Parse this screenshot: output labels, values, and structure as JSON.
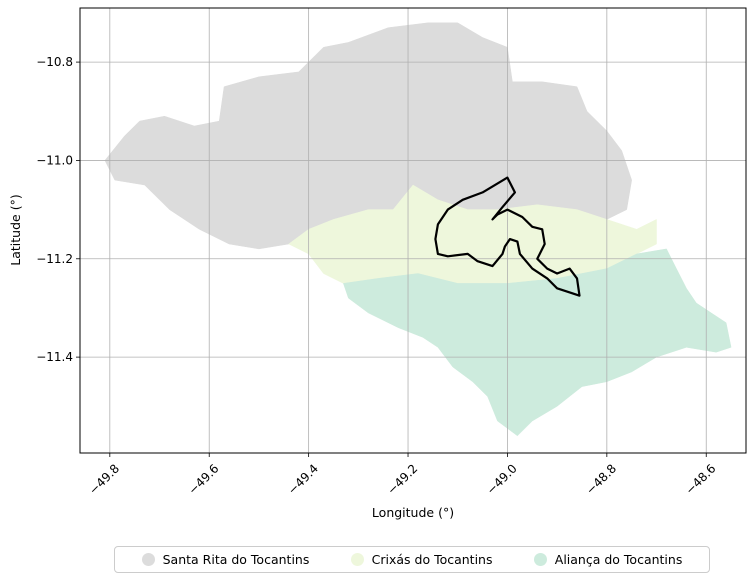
{
  "chart_data": {
    "type": "map",
    "xlabel": "Longitude (°)",
    "ylabel": "Latitude (°)",
    "xlim": [
      -49.86,
      -48.52
    ],
    "ylim": [
      -11.595,
      -10.69
    ],
    "xticks": [
      -49.8,
      -49.6,
      -49.4,
      -49.2,
      -49.0,
      -48.8,
      -48.6
    ],
    "yticks": [
      -10.8,
      -11.0,
      -11.2,
      -11.4
    ],
    "xtick_labels": [
      "−49.8",
      "−49.6",
      "−49.4",
      "−49.2",
      "−49.0",
      "−48.8",
      "−48.6"
    ],
    "ytick_labels": [
      "−10.8",
      "−11.0",
      "−11.2",
      "−11.4"
    ],
    "grid": true,
    "legend_position": "bottom-center",
    "regions": [
      {
        "name": "Santa Rita do Tocantins",
        "color": "#dcdcdc",
        "outline": [
          [
            -49.81,
            -11.0
          ],
          [
            -49.77,
            -10.95
          ],
          [
            -49.74,
            -10.92
          ],
          [
            -49.69,
            -10.91
          ],
          [
            -49.63,
            -10.93
          ],
          [
            -49.58,
            -10.92
          ],
          [
            -49.57,
            -10.85
          ],
          [
            -49.5,
            -10.83
          ],
          [
            -49.42,
            -10.82
          ],
          [
            -49.37,
            -10.77
          ],
          [
            -49.32,
            -10.76
          ],
          [
            -49.24,
            -10.73
          ],
          [
            -49.16,
            -10.72
          ],
          [
            -49.1,
            -10.72
          ],
          [
            -49.05,
            -10.75
          ],
          [
            -49.0,
            -10.77
          ],
          [
            -48.99,
            -10.84
          ],
          [
            -48.93,
            -10.84
          ],
          [
            -48.86,
            -10.85
          ],
          [
            -48.84,
            -10.9
          ],
          [
            -48.8,
            -10.94
          ],
          [
            -48.77,
            -10.98
          ],
          [
            -48.75,
            -11.04
          ],
          [
            -48.76,
            -11.1
          ],
          [
            -48.8,
            -11.12
          ],
          [
            -48.86,
            -11.1
          ],
          [
            -48.94,
            -11.09
          ],
          [
            -49.02,
            -11.1
          ],
          [
            -49.08,
            -11.1
          ],
          [
            -49.14,
            -11.08
          ],
          [
            -49.19,
            -11.05
          ],
          [
            -49.23,
            -11.1
          ],
          [
            -49.28,
            -11.1
          ],
          [
            -49.35,
            -11.12
          ],
          [
            -49.4,
            -11.14
          ],
          [
            -49.44,
            -11.17
          ],
          [
            -49.5,
            -11.18
          ],
          [
            -49.56,
            -11.17
          ],
          [
            -49.62,
            -11.14
          ],
          [
            -49.68,
            -11.1
          ],
          [
            -49.73,
            -11.05
          ],
          [
            -49.79,
            -11.04
          ]
        ]
      },
      {
        "name": "Crixás do Tocantins",
        "color": "#eef7dc",
        "outline": [
          [
            -49.44,
            -11.17
          ],
          [
            -49.4,
            -11.14
          ],
          [
            -49.35,
            -11.12
          ],
          [
            -49.28,
            -11.1
          ],
          [
            -49.23,
            -11.1
          ],
          [
            -49.19,
            -11.05
          ],
          [
            -49.14,
            -11.08
          ],
          [
            -49.08,
            -11.1
          ],
          [
            -49.02,
            -11.1
          ],
          [
            -48.94,
            -11.09
          ],
          [
            -48.86,
            -11.1
          ],
          [
            -48.8,
            -11.12
          ],
          [
            -48.74,
            -11.14
          ],
          [
            -48.7,
            -11.12
          ],
          [
            -48.7,
            -11.17
          ],
          [
            -48.74,
            -11.19
          ],
          [
            -48.8,
            -11.22
          ],
          [
            -48.9,
            -11.24
          ],
          [
            -49.0,
            -11.25
          ],
          [
            -49.1,
            -11.25
          ],
          [
            -49.18,
            -11.23
          ],
          [
            -49.26,
            -11.24
          ],
          [
            -49.33,
            -11.25
          ],
          [
            -49.37,
            -11.23
          ],
          [
            -49.4,
            -11.19
          ]
        ]
      },
      {
        "name": "Aliança do Tocantins",
        "color": "#cdebdd",
        "outline": [
          [
            -49.33,
            -11.25
          ],
          [
            -49.26,
            -11.24
          ],
          [
            -49.18,
            -11.23
          ],
          [
            -49.1,
            -11.25
          ],
          [
            -49.0,
            -11.25
          ],
          [
            -48.9,
            -11.24
          ],
          [
            -48.8,
            -11.22
          ],
          [
            -48.74,
            -11.19
          ],
          [
            -48.68,
            -11.18
          ],
          [
            -48.66,
            -11.22
          ],
          [
            -48.64,
            -11.26
          ],
          [
            -48.62,
            -11.29
          ],
          [
            -48.59,
            -11.31
          ],
          [
            -48.56,
            -11.33
          ],
          [
            -48.55,
            -11.38
          ],
          [
            -48.58,
            -11.39
          ],
          [
            -48.64,
            -11.38
          ],
          [
            -48.7,
            -11.4
          ],
          [
            -48.75,
            -11.43
          ],
          [
            -48.8,
            -11.45
          ],
          [
            -48.85,
            -11.46
          ],
          [
            -48.9,
            -11.5
          ],
          [
            -48.95,
            -11.53
          ],
          [
            -48.98,
            -11.56
          ],
          [
            -49.02,
            -11.53
          ],
          [
            -49.04,
            -11.48
          ],
          [
            -49.07,
            -11.45
          ],
          [
            -49.11,
            -11.42
          ],
          [
            -49.14,
            -11.38
          ],
          [
            -49.17,
            -11.36
          ],
          [
            -49.22,
            -11.34
          ],
          [
            -49.28,
            -11.31
          ],
          [
            -49.32,
            -11.28
          ]
        ]
      }
    ],
    "boundary": {
      "color": "#000000",
      "points": [
        [
          -49.0,
          -11.035
        ],
        [
          -48.985,
          -11.065
        ],
        [
          -49.01,
          -11.095
        ],
        [
          -49.03,
          -11.12
        ],
        [
          -49.02,
          -11.11
        ],
        [
          -49.0,
          -11.1
        ],
        [
          -48.97,
          -11.115
        ],
        [
          -48.95,
          -11.135
        ],
        [
          -48.93,
          -11.14
        ],
        [
          -48.925,
          -11.17
        ],
        [
          -48.94,
          -11.2
        ],
        [
          -48.92,
          -11.22
        ],
        [
          -48.9,
          -11.23
        ],
        [
          -48.875,
          -11.22
        ],
        [
          -48.86,
          -11.24
        ],
        [
          -48.855,
          -11.275
        ],
        [
          -48.87,
          -11.27
        ],
        [
          -48.9,
          -11.26
        ],
        [
          -48.92,
          -11.24
        ],
        [
          -48.95,
          -11.22
        ],
        [
          -48.975,
          -11.19
        ],
        [
          -48.98,
          -11.165
        ],
        [
          -48.995,
          -11.16
        ],
        [
          -49.005,
          -11.175
        ],
        [
          -49.01,
          -11.19
        ],
        [
          -49.03,
          -11.215
        ],
        [
          -49.06,
          -11.205
        ],
        [
          -49.08,
          -11.19
        ],
        [
          -49.12,
          -11.195
        ],
        [
          -49.14,
          -11.19
        ],
        [
          -49.145,
          -11.16
        ],
        [
          -49.14,
          -11.13
        ],
        [
          -49.12,
          -11.1
        ],
        [
          -49.09,
          -11.08
        ],
        [
          -49.05,
          -11.065
        ]
      ]
    }
  }
}
